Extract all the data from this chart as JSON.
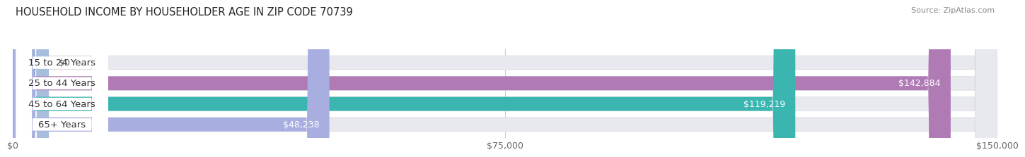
{
  "title": "HOUSEHOLD INCOME BY HOUSEHOLDER AGE IN ZIP CODE 70739",
  "source": "Source: ZipAtlas.com",
  "categories": [
    "15 to 24 Years",
    "25 to 44 Years",
    "45 to 64 Years",
    "65+ Years"
  ],
  "values": [
    0,
    142884,
    119219,
    48238
  ],
  "bar_colors": [
    "#a8bedd",
    "#b07ab5",
    "#3ab5b0",
    "#a8aee0"
  ],
  "bg_bar_color": "#e8e8ef",
  "value_labels": [
    "$0",
    "$142,884",
    "$119,219",
    "$48,238"
  ],
  "x_ticks": [
    0,
    75000,
    150000
  ],
  "x_tick_labels": [
    "$0",
    "$75,000",
    "$150,000"
  ],
  "xlim": [
    0,
    150000
  ],
  "title_fontsize": 10.5,
  "source_fontsize": 8,
  "label_fontsize": 9.5,
  "value_fontsize": 9,
  "tick_fontsize": 9,
  "background_color": "#ffffff",
  "bar_height": 0.68,
  "label_bg_color": "#ffffff",
  "label_text_color": "#333333",
  "value_text_color_inside": "#ffffff",
  "value_text_color_outside": "#555555",
  "grid_color": "#cccccc",
  "tick_color": "#666666"
}
